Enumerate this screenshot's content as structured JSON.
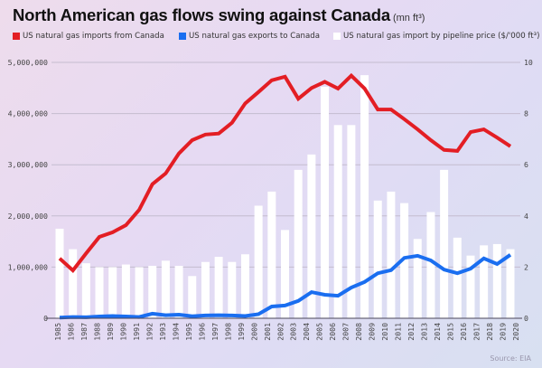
{
  "header": {
    "title": "North American gas flows swing against Canada",
    "unit": "(mn ft³)"
  },
  "legend": [
    {
      "label": "US natural gas imports from Canada",
      "color": "#e31e24"
    },
    {
      "label": "US natural gas exports to Canada",
      "color": "#1a6ef0"
    },
    {
      "label": "US natural gas import by pipeline price ($/'000 ft³)",
      "color": "#ffffff"
    }
  ],
  "source": "Source: EIA",
  "chart_data": {
    "type": "bar+line",
    "title": "North American gas flows swing against Canada",
    "subtitle": "(mn ft³)",
    "x_tick_labels": [
      "1985",
      "1986",
      "1987",
      "1988",
      "1989",
      "1990",
      "1991",
      "1992",
      "1993",
      "1994",
      "1995",
      "1996",
      "1997",
      "1998",
      "1999",
      "2000",
      "2001",
      "2002",
      "2003",
      "2004",
      "2005",
      "2006",
      "2007",
      "2008",
      "2009",
      "2010",
      "2011",
      "2012",
      "2013",
      "2014",
      "2015",
      "2016",
      "2017",
      "2018",
      "2019",
      "2020"
    ],
    "categories": [
      "1985",
      "1986",
      "1987",
      "1988",
      "1989",
      "1990",
      "1991",
      "1992",
      "1993",
      "1994",
      "1995",
      "1996",
      "1997",
      "1998",
      "1999",
      "2000",
      "2001",
      "2002",
      "2003",
      "2004",
      "2005",
      "2006",
      "2007",
      "2008",
      "2009",
      "2010",
      "2011",
      "2012",
      "2013",
      "2014",
      "2015",
      "2016",
      "2017",
      "2018",
      "2019"
    ],
    "left_axis": {
      "label": "",
      "range": [
        0,
        5000000
      ],
      "ticks": [
        "0",
        "1,000,000",
        "2,000,000",
        "3,000,000",
        "4,000,000",
        "5,000,000"
      ],
      "tick_values": [
        0,
        1000000,
        2000000,
        3000000,
        4000000,
        5000000
      ]
    },
    "right_axis": {
      "label": "",
      "range": [
        0,
        10
      ],
      "ticks": [
        "0",
        "2",
        "4",
        "6",
        "8",
        "10"
      ],
      "tick_values": [
        0,
        2,
        4,
        6,
        8,
        10
      ]
    },
    "grid": true,
    "legend_position": "top",
    "series": [
      {
        "name": "US natural gas import by pipeline price ($/'000 ft³)",
        "type": "bar",
        "axis": "right",
        "color": "#ffffff",
        "values": [
          3.5,
          2.7,
          2.15,
          2.0,
          2.0,
          2.1,
          2.0,
          2.05,
          2.25,
          2.05,
          1.65,
          2.2,
          2.4,
          2.2,
          2.5,
          4.4,
          4.95,
          3.45,
          5.8,
          6.4,
          9.05,
          7.55,
          7.55,
          9.5,
          4.6,
          4.95,
          4.5,
          3.1,
          4.15,
          5.8,
          3.15,
          2.45,
          2.85,
          2.9,
          2.7
        ]
      },
      {
        "name": "US natural gas imports from Canada",
        "type": "line",
        "axis": "left",
        "color": "#e31e24",
        "values": [
          1170000,
          935000,
          1270000,
          1590000,
          1680000,
          1820000,
          2120000,
          2620000,
          2830000,
          3220000,
          3480000,
          3590000,
          3610000,
          3820000,
          4200000,
          4420000,
          4650000,
          4720000,
          4290000,
          4500000,
          4620000,
          4490000,
          4740000,
          4490000,
          4080000,
          4080000,
          3890000,
          3690000,
          3480000,
          3290000,
          3270000,
          3640000,
          3690000,
          3530000,
          3360000
        ]
      },
      {
        "name": "US natural gas exports to Canada",
        "type": "line",
        "axis": "left",
        "color": "#1a6ef0",
        "values": [
          15000,
          25000,
          20000,
          35000,
          45000,
          35000,
          25000,
          90000,
          60000,
          70000,
          40000,
          55000,
          60000,
          55000,
          45000,
          80000,
          230000,
          250000,
          340000,
          510000,
          460000,
          440000,
          600000,
          710000,
          880000,
          940000,
          1180000,
          1220000,
          1130000,
          950000,
          880000,
          970000,
          1170000,
          1060000,
          1240000
        ]
      }
    ]
  }
}
